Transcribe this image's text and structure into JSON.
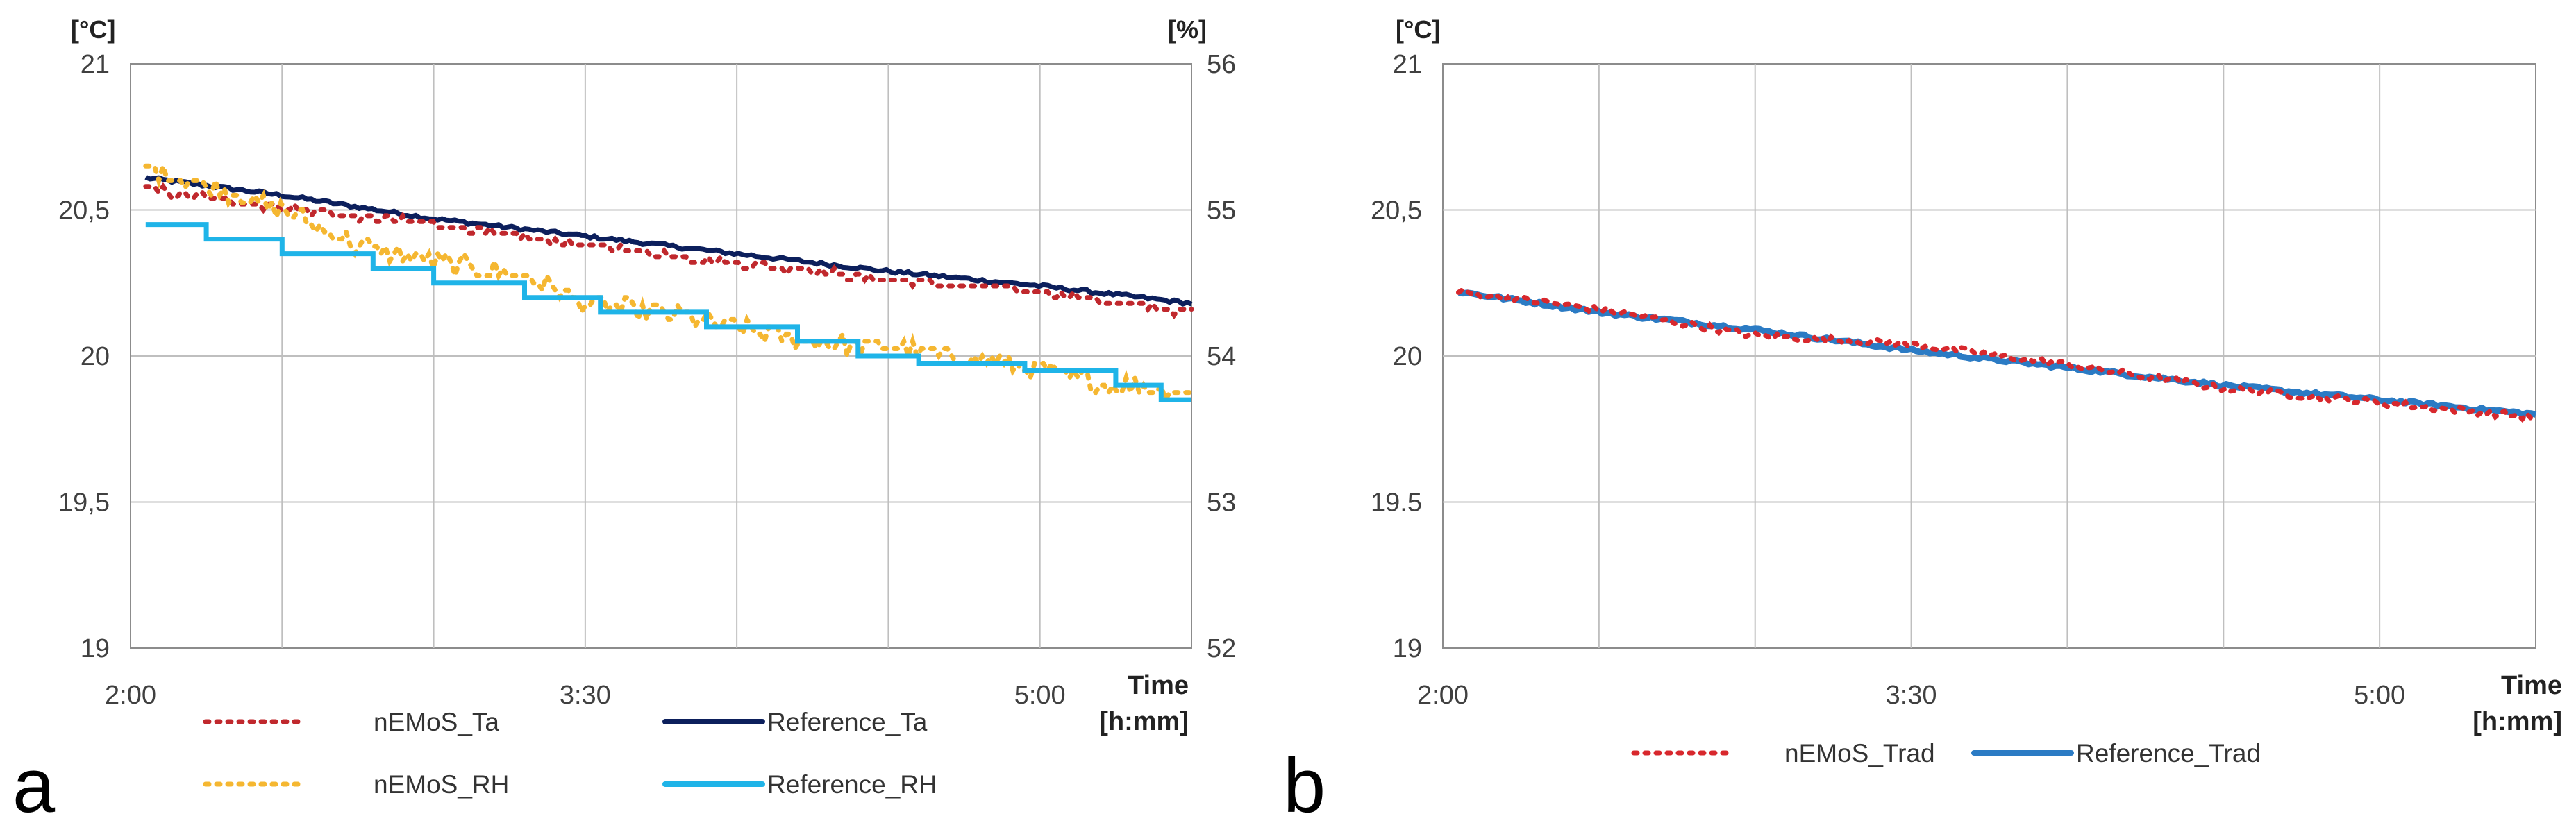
{
  "chart_data": [
    {
      "panel": "a",
      "type": "line",
      "y_unit_left": "[°C]",
      "y_unit_right": "[%]",
      "x_title_1": "Time",
      "x_title_2": "[h:mm]",
      "x_range_hours": [
        2.0,
        5.5
      ],
      "x_ticks": [
        {
          "value": 2.0,
          "label": "2:00"
        },
        {
          "value": 3.5,
          "label": "3:30"
        },
        {
          "value": 5.0,
          "label": "5:00"
        }
      ],
      "y_left": {
        "range": [
          19,
          21
        ],
        "ticks": [
          "19",
          "19,5",
          "20",
          "20,5",
          "21"
        ]
      },
      "y_right": {
        "range": [
          52,
          56
        ],
        "ticks": [
          "52",
          "53",
          "54",
          "55",
          "56"
        ]
      },
      "grid": true,
      "legend": [
        {
          "name": "nEMoS_Ta",
          "color": "#c0282d",
          "style": "dotted"
        },
        {
          "name": "Reference_Ta",
          "color": "#0c1f5c",
          "style": "solid"
        },
        {
          "name": "nEMoS_RH",
          "color": "#f5b731",
          "style": "dotted"
        },
        {
          "name": "Reference_RH",
          "color": "#1fb4e8",
          "style": "solid"
        }
      ],
      "series": [
        {
          "name": "Reference_Ta",
          "axis": "left",
          "x": [
            2.05,
            2.5,
            3.0,
            3.5,
            4.0,
            4.5,
            5.0,
            5.5
          ],
          "y": [
            20.61,
            20.55,
            20.47,
            20.41,
            20.35,
            20.29,
            20.24,
            20.18
          ]
        },
        {
          "name": "nEMoS_Ta",
          "axis": "left",
          "x": [
            2.05,
            2.5,
            3.0,
            3.5,
            4.0,
            4.5,
            5.0,
            5.5
          ],
          "y": [
            20.57,
            20.51,
            20.45,
            20.38,
            20.32,
            20.26,
            20.22,
            20.15
          ]
        },
        {
          "name": "nEMoS_RH",
          "axis": "right",
          "x": [
            2.05,
            2.2,
            2.5,
            2.75,
            3.0,
            3.3,
            3.5,
            3.75,
            4.0,
            4.25,
            4.5,
            4.75,
            5.0,
            5.25,
            5.5
          ],
          "y": [
            55.3,
            55.2,
            55.0,
            54.75,
            54.65,
            54.55,
            54.35,
            54.3,
            54.2,
            54.1,
            54.05,
            54.0,
            53.9,
            53.8,
            53.75
          ]
        },
        {
          "name": "Reference_RH",
          "axis": "right",
          "steps": [
            [
              2.05,
              54.9
            ],
            [
              2.25,
              54.8
            ],
            [
              2.5,
              54.7
            ],
            [
              2.8,
              54.6
            ],
            [
              3.0,
              54.5
            ],
            [
              3.3,
              54.4
            ],
            [
              3.55,
              54.3
            ],
            [
              3.9,
              54.2
            ],
            [
              4.2,
              54.1
            ],
            [
              4.4,
              54.0
            ],
            [
              4.6,
              53.95
            ],
            [
              4.95,
              53.9
            ],
            [
              5.25,
              53.8
            ],
            [
              5.4,
              53.7
            ],
            [
              5.5,
              53.7
            ]
          ]
        }
      ],
      "panel_label": "a"
    },
    {
      "panel": "b",
      "type": "line",
      "y_unit_left": "[°C]",
      "x_title_1": "Time",
      "x_title_2": "[h:mm]",
      "x_range_hours": [
        2.0,
        5.5
      ],
      "x_ticks": [
        {
          "value": 2.0,
          "label": "2:00"
        },
        {
          "value": 3.5,
          "label": "3:30"
        },
        {
          "value": 5.0,
          "label": "5:00"
        }
      ],
      "y_left": {
        "range": [
          19,
          21
        ],
        "ticks": [
          "19",
          "19.5",
          "20",
          "20,5",
          "21"
        ]
      },
      "grid": true,
      "legend": [
        {
          "name": "nEMoS_Trad",
          "color": "#d8282d",
          "style": "dotted"
        },
        {
          "name": "Reference_Trad",
          "color": "#2b7bc4",
          "style": "solid"
        }
      ],
      "series": [
        {
          "name": "Reference_Trad",
          "axis": "left",
          "x": [
            2.05,
            2.5,
            3.0,
            3.5,
            4.0,
            4.5,
            5.0,
            5.5
          ],
          "y": [
            20.22,
            20.15,
            20.09,
            20.02,
            19.96,
            19.9,
            19.85,
            19.8
          ]
        },
        {
          "name": "nEMoS_Trad",
          "axis": "left",
          "x": [
            2.05,
            2.5,
            3.0,
            3.5,
            4.0,
            4.5,
            5.0,
            5.5
          ],
          "y": [
            20.22,
            20.16,
            20.07,
            20.04,
            19.97,
            19.89,
            19.84,
            19.79
          ]
        }
      ],
      "panel_label": "b"
    }
  ]
}
